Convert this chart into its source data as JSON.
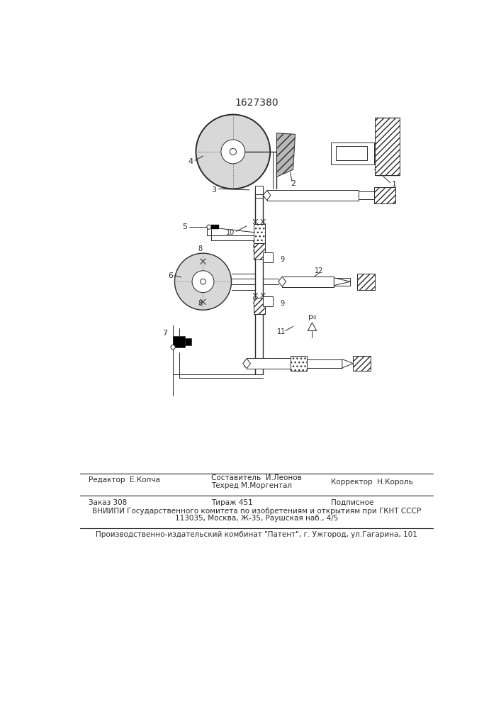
{
  "title": "1627380",
  "bg_color": "#ffffff",
  "line_color": "#2a2a2a",
  "footer": {
    "editor": "Редактор  Е.Копча",
    "compiler1": "Составитель  И.Леонов",
    "compiler2": "Техред М.Моргентал",
    "corrector": "Корректор  Н.Король",
    "order": "Заказ 308",
    "circulation": "Тираж 451",
    "subscription": "Подписное",
    "vniiipi": "ВНИИПИ Государственного комитета по изобретениям и открытиям при ГКНТ СССР",
    "address": "113035, Москва, Ж-35, Раушская наб., 4/5",
    "production": "Производственно-издательский комбинат \"Патент\", г. Ужгород, ул.Гагарина, 101"
  }
}
